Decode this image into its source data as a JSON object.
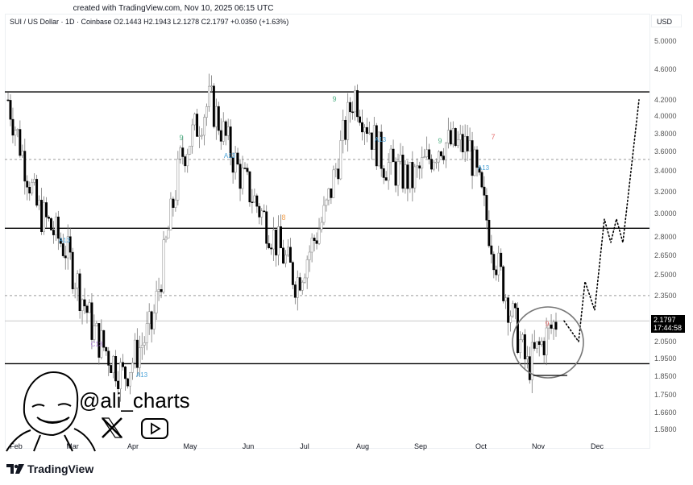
{
  "header": {
    "created_text": "created with TradingView.com, Nov 10, 2025 06:15 UTC",
    "legend": "SUI / US Dollar · 1D · Coinbase  O2.1443  H2.1943  L2.1278  C2.1797  +0.0350 (+1.63%)",
    "currency": "USD"
  },
  "current_price": {
    "value": "2.1797",
    "countdown": "17:44:58"
  },
  "watermark": {
    "handle": "@ali_charts",
    "icons": [
      "avatar-illustration",
      "x-logo-icon",
      "youtube-icon"
    ]
  },
  "footer": {
    "brand": "TradingView"
  },
  "colors": {
    "up_candle": "#ffffff",
    "down_candle": "#000000",
    "wick": "#7a7a7a",
    "level_line": "#000000",
    "dashed_line": "#9a9a9a",
    "td_green": "#4caf82",
    "td_red": "#e57373",
    "td_orange": "#f0a050",
    "td_blue": "#4aa3d9",
    "td_purple": "#b07fd9"
  },
  "chart_data": {
    "type": "candlestick",
    "title": "SUI / US Dollar · 1D · Coinbase",
    "xlabel": "",
    "ylabel": "USD",
    "y_scale": "log",
    "ylim": [
      1.55,
      5.1
    ],
    "y_ticks": [
      "5.0000",
      "4.6000",
      "4.2000",
      "4.0000",
      "3.8000",
      "3.6000",
      "3.4000",
      "3.2000",
      "3.0000",
      "2.8000",
      "2.6500",
      "2.5000",
      "2.3500",
      "2.0500",
      "1.9500",
      "1.8500",
      "1.7500",
      "1.6600",
      "1.5800"
    ],
    "x_ticks": [
      "Feb",
      "Mar",
      "Apr",
      "May",
      "Jun",
      "Jul",
      "Aug",
      "Sep",
      "Oct",
      "Nov",
      "Dec"
    ],
    "ohlc_last": {
      "open": 2.1443,
      "high": 2.1943,
      "low": 2.1278,
      "close": 2.1797,
      "change": 0.035,
      "change_pct": 1.63
    },
    "levels": [
      {
        "price": 4.3,
        "style": "solid"
      },
      {
        "price": 3.52,
        "style": "dashed"
      },
      {
        "price": 2.87,
        "style": "solid"
      },
      {
        "price": 2.35,
        "style": "dashed"
      },
      {
        "price": 2.18,
        "style": "thin-solid"
      },
      {
        "price": 1.92,
        "style": "solid"
      }
    ],
    "approx_path": [
      {
        "month": "Feb",
        "price": 4.2
      },
      {
        "month": "Feb",
        "price": 3.05
      },
      {
        "month": "Mar",
        "price": 2.7
      },
      {
        "month": "Mar",
        "price": 2.1
      },
      {
        "month": "Apr",
        "price": 1.85
      },
      {
        "month": "Apr",
        "price": 2.15
      },
      {
        "month": "May",
        "price": 3.55
      },
      {
        "month": "May",
        "price": 4.2
      },
      {
        "month": "Jun",
        "price": 3.4
      },
      {
        "month": "Jun",
        "price": 2.9
      },
      {
        "month": "Jul",
        "price": 2.45
      },
      {
        "month": "Jul",
        "price": 3.0
      },
      {
        "month": "Aug",
        "price": 4.3
      },
      {
        "month": "Aug",
        "price": 3.5
      },
      {
        "month": "Sep",
        "price": 3.3
      },
      {
        "month": "Sep",
        "price": 3.7
      },
      {
        "month": "Oct",
        "price": 3.65
      },
      {
        "month": "Oct",
        "price": 2.55
      },
      {
        "month": "Nov",
        "price": 1.9
      },
      {
        "month": "Nov",
        "price": 2.18
      }
    ],
    "projection": [
      {
        "label": "dip",
        "price": 2.05
      },
      {
        "label": "bounce",
        "price": 2.45
      },
      {
        "label": "pullback",
        "price": 2.25
      },
      {
        "label": "retest",
        "price": 2.95
      },
      {
        "label": "chop-low",
        "price": 2.75
      },
      {
        "label": "chop-high",
        "price": 2.95
      },
      {
        "label": "chop-low",
        "price": 2.75
      },
      {
        "label": "target",
        "price": 4.2
      }
    ],
    "annotations": [
      {
        "text": "9",
        "color": "green",
        "month": "May"
      },
      {
        "text": "A13",
        "color": "blue",
        "month": "Mar"
      },
      {
        "text": "C13",
        "color": "purple",
        "month": "Mar"
      },
      {
        "text": "A13",
        "color": "blue",
        "month": "Apr"
      },
      {
        "text": "A13",
        "color": "blue",
        "month": "May"
      },
      {
        "text": "9",
        "color": "green",
        "month": "Jul"
      },
      {
        "text": "8",
        "color": "orange",
        "month": "Jun"
      },
      {
        "text": "A13",
        "color": "blue",
        "month": "Aug"
      },
      {
        "text": "9",
        "color": "green",
        "month": "Sep"
      },
      {
        "text": "A13",
        "color": "blue",
        "month": "Sep"
      },
      {
        "text": "7",
        "color": "red",
        "month": "Oct"
      },
      {
        "text": "9",
        "color": "red",
        "month": "Nov"
      }
    ],
    "highlight": {
      "shape": "circle",
      "around": "Nov lows"
    },
    "grid": false,
    "legend_position": "top-left"
  }
}
